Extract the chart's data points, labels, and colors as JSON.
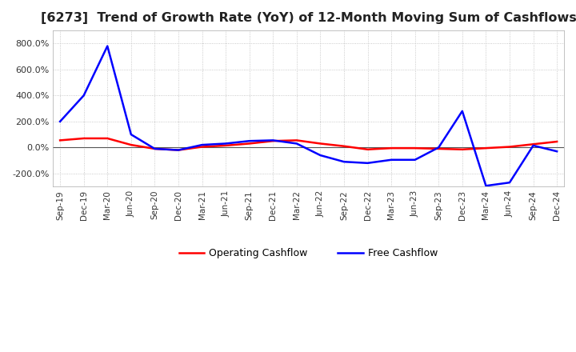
{
  "title": "[6273]  Trend of Growth Rate (YoY) of 12-Month Moving Sum of Cashflows",
  "title_fontsize": 11.5,
  "background_color": "#ffffff",
  "grid_color": "#bbbbbb",
  "ylim": [
    -300,
    900
  ],
  "yticks": [
    -200,
    0,
    200,
    400,
    600,
    800
  ],
  "legend_labels": [
    "Operating Cashflow",
    "Free Cashflow"
  ],
  "legend_colors": [
    "#ff0000",
    "#0000ff"
  ],
  "x_labels": [
    "Sep-19",
    "Dec-19",
    "Mar-20",
    "Jun-20",
    "Sep-20",
    "Dec-20",
    "Mar-21",
    "Jun-21",
    "Sep-21",
    "Dec-21",
    "Mar-22",
    "Jun-22",
    "Sep-22",
    "Dec-22",
    "Mar-23",
    "Jun-23",
    "Sep-23",
    "Dec-23",
    "Mar-24",
    "Jun-24",
    "Sep-24",
    "Dec-24"
  ],
  "operating_cashflow": [
    55,
    70,
    70,
    20,
    -10,
    -20,
    5,
    15,
    30,
    50,
    55,
    30,
    10,
    -15,
    -5,
    -5,
    -10,
    -15,
    -5,
    5,
    25,
    45
  ],
  "free_cashflow": [
    200,
    400,
    780,
    100,
    -10,
    -20,
    20,
    30,
    50,
    55,
    30,
    -60,
    -110,
    -120,
    -95,
    -95,
    0,
    280,
    -295,
    -270,
    15,
    -30
  ]
}
